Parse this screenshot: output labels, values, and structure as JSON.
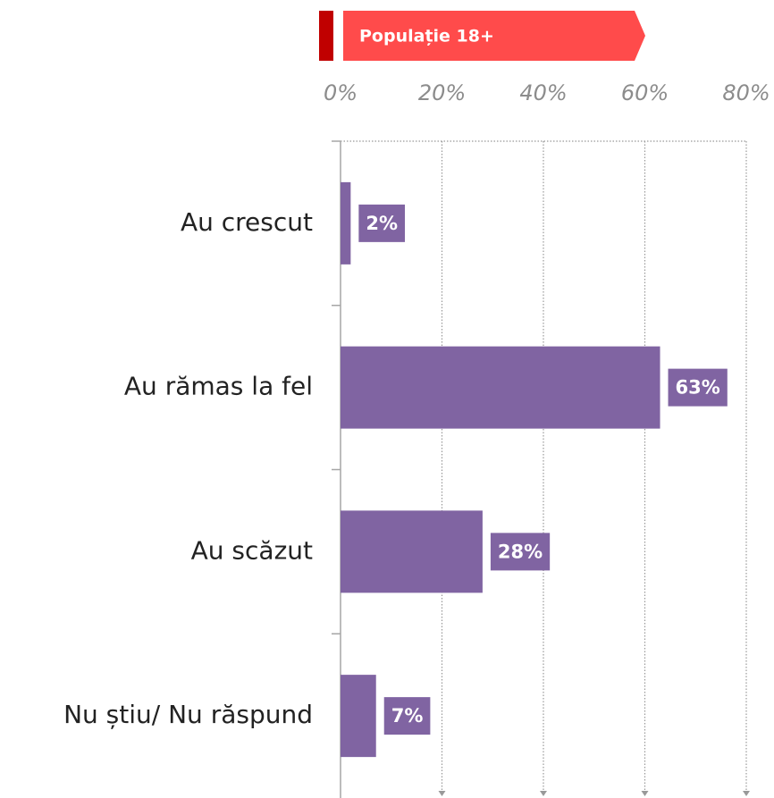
{
  "chart_data": {
    "type": "bar",
    "orientation": "horizontal",
    "categories": [
      "Au crescut",
      "Au rămas la fel",
      "Au scăzut",
      "Nu știu/ Nu răspund"
    ],
    "series": [
      {
        "name": "Populație 18+",
        "color": "#8064a2",
        "values": [
          2,
          63,
          28,
          7
        ],
        "value_labels": [
          "2%",
          "63%",
          "28%",
          "7%"
        ]
      }
    ],
    "xlim": [
      0,
      80
    ],
    "xticks": [
      {
        "value": 0,
        "label": "0%"
      },
      {
        "value": 20,
        "label": "20%"
      },
      {
        "value": 40,
        "label": "40%"
      },
      {
        "value": 60,
        "label": "60%"
      },
      {
        "value": 80,
        "label": "80%"
      }
    ],
    "grid": true
  }
}
